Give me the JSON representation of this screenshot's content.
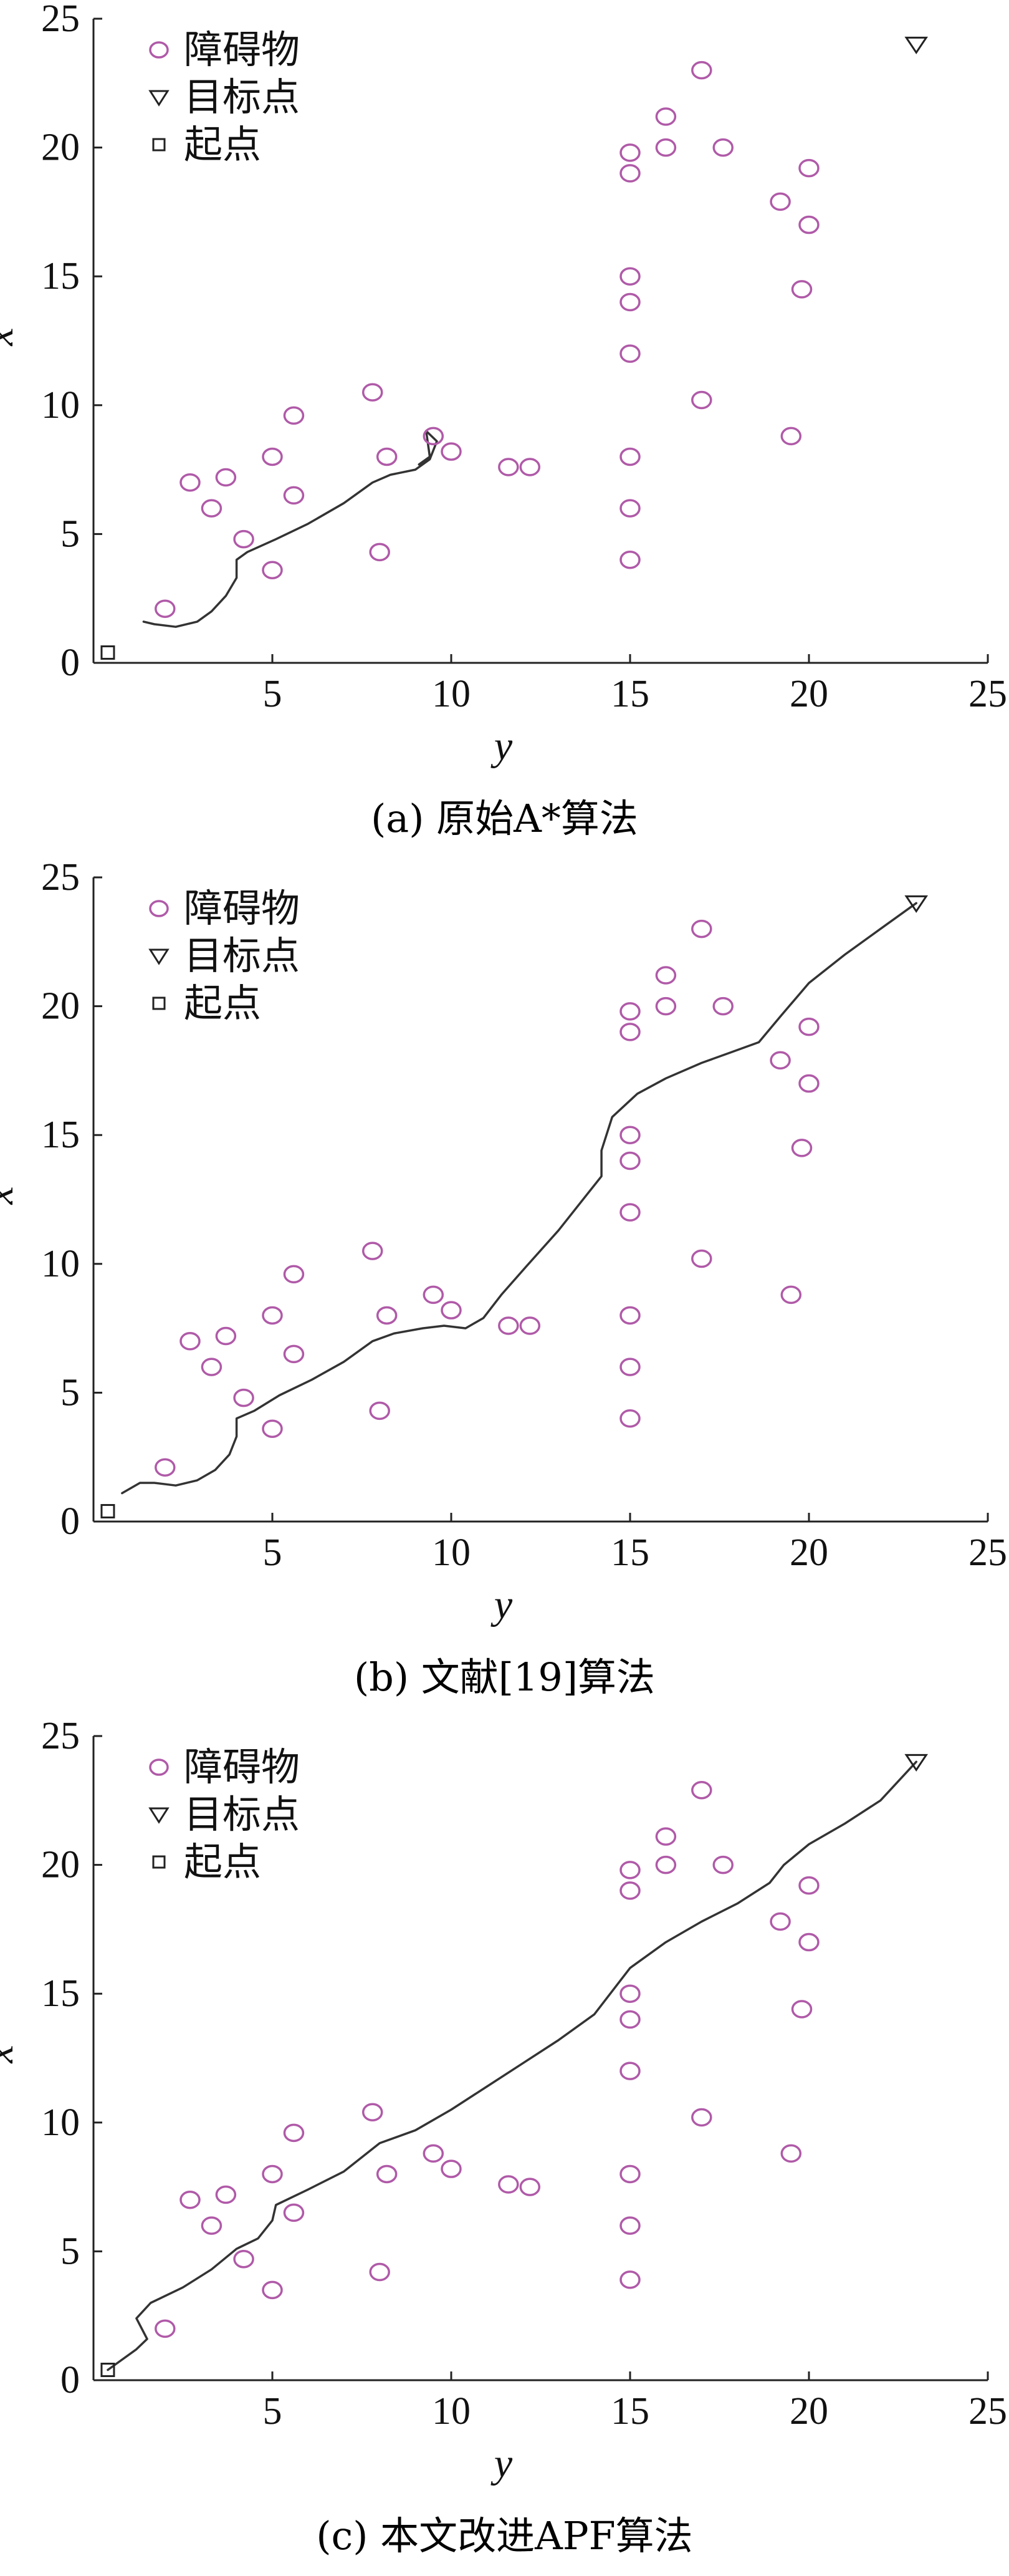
{
  "chart_data": [
    {
      "type": "scatter",
      "caption": "(a) 原始A*算法",
      "xlabel": "y",
      "ylabel": "x",
      "xlim": [
        0,
        25
      ],
      "ylim": [
        0,
        25
      ],
      "xticks": [
        "5",
        "10",
        "15",
        "20",
        "25"
      ],
      "yticks": [
        "0",
        "5",
        "10",
        "15",
        "20",
        "25"
      ],
      "legend": {
        "position": "top-left",
        "entries": [
          "障碍物",
          "目标点",
          "起点"
        ]
      },
      "colors": {
        "obstacle": "#b05aa8",
        "path": "#333333",
        "axis": "#222222"
      },
      "series": [
        {
          "name": "障碍物",
          "marker": "circle",
          "points": [
            [
              2,
              2.1
            ],
            [
              2.7,
              7
            ],
            [
              3.3,
              6
            ],
            [
              3.7,
              7.2
            ],
            [
              4.2,
              4.8
            ],
            [
              5,
              3.6
            ],
            [
              5,
              8
            ],
            [
              5.6,
              6.5
            ],
            [
              5.6,
              9.6
            ],
            [
              7.8,
              10.5
            ],
            [
              8,
              4.3
            ],
            [
              8.2,
              8
            ],
            [
              9.5,
              8.8
            ],
            [
              10,
              8.2
            ],
            [
              11.6,
              7.6
            ],
            [
              12.2,
              7.6
            ],
            [
              15,
              4
            ],
            [
              15,
              6
            ],
            [
              15,
              8
            ],
            [
              15,
              12
            ],
            [
              15,
              14
            ],
            [
              15,
              15
            ],
            [
              15,
              19
            ],
            [
              15,
              19.8
            ],
            [
              16,
              20
            ],
            [
              16,
              21.2
            ],
            [
              17,
              10.2
            ],
            [
              17,
              23
            ],
            [
              17.6,
              20
            ],
            [
              19.2,
              17.9
            ],
            [
              19.5,
              8.8
            ],
            [
              19.8,
              14.5
            ],
            [
              20,
              17
            ],
            [
              20,
              19.2
            ]
          ]
        },
        {
          "name": "目标点",
          "marker": "triangle",
          "points": [
            [
              23,
              24
            ]
          ]
        },
        {
          "name": "起点",
          "marker": "square",
          "points": [
            [
              0.4,
              0.4
            ]
          ]
        },
        {
          "name": "path",
          "marker": "line",
          "points": [
            [
              1.4,
              1.6
            ],
            [
              1.7,
              1.5
            ],
            [
              2.3,
              1.4
            ],
            [
              2.9,
              1.6
            ],
            [
              3.3,
              2
            ],
            [
              3.7,
              2.6
            ],
            [
              4,
              3.3
            ],
            [
              4,
              4
            ],
            [
              4.3,
              4.3
            ],
            [
              5.1,
              4.8
            ],
            [
              6,
              5.4
            ],
            [
              7,
              6.2
            ],
            [
              7.8,
              7
            ],
            [
              8.3,
              7.3
            ],
            [
              9,
              7.5
            ],
            [
              9.4,
              7.9
            ],
            [
              9.6,
              8.6
            ],
            [
              9.3,
              9
            ],
            [
              9.4,
              8
            ],
            [
              9.1,
              7.7
            ]
          ]
        }
      ]
    },
    {
      "type": "scatter",
      "caption": "(b) 文献[19]算法",
      "xlabel": "y",
      "ylabel": "x",
      "xlim": [
        0,
        25
      ],
      "ylim": [
        0,
        25
      ],
      "xticks": [
        "5",
        "10",
        "15",
        "20",
        "25"
      ],
      "yticks": [
        "0",
        "5",
        "10",
        "15",
        "20",
        "25"
      ],
      "legend": {
        "position": "top-left",
        "entries": [
          "障碍物",
          "目标点",
          "起点"
        ]
      },
      "colors": {
        "obstacle": "#b05aa8",
        "path": "#333333",
        "axis": "#222222"
      },
      "series": [
        {
          "name": "障碍物",
          "marker": "circle",
          "points": [
            [
              2,
              2.1
            ],
            [
              2.7,
              7
            ],
            [
              3.3,
              6
            ],
            [
              3.7,
              7.2
            ],
            [
              4.2,
              4.8
            ],
            [
              5,
              3.6
            ],
            [
              5,
              8
            ],
            [
              5.6,
              6.5
            ],
            [
              5.6,
              9.6
            ],
            [
              7.8,
              10.5
            ],
            [
              8,
              4.3
            ],
            [
              8.2,
              8
            ],
            [
              9.5,
              8.8
            ],
            [
              10,
              8.2
            ],
            [
              11.6,
              7.6
            ],
            [
              12.2,
              7.6
            ],
            [
              15,
              4
            ],
            [
              15,
              6
            ],
            [
              15,
              8
            ],
            [
              15,
              12
            ],
            [
              15,
              14
            ],
            [
              15,
              15
            ],
            [
              15,
              19
            ],
            [
              15,
              19.8
            ],
            [
              16,
              20
            ],
            [
              16,
              21.2
            ],
            [
              17,
              10.2
            ],
            [
              17,
              23
            ],
            [
              17.6,
              20
            ],
            [
              19.2,
              17.9
            ],
            [
              19.5,
              8.8
            ],
            [
              19.8,
              14.5
            ],
            [
              20,
              17
            ],
            [
              20,
              19.2
            ]
          ]
        },
        {
          "name": "目标点",
          "marker": "triangle",
          "points": [
            [
              23,
              24
            ]
          ]
        },
        {
          "name": "起点",
          "marker": "square",
          "points": [
            [
              0.4,
              0.4
            ]
          ]
        },
        {
          "name": "path",
          "marker": "line",
          "points": [
            [
              0.8,
              1.1
            ],
            [
              1.3,
              1.5
            ],
            [
              1.7,
              1.5
            ],
            [
              2.3,
              1.4
            ],
            [
              2.9,
              1.6
            ],
            [
              3.4,
              2
            ],
            [
              3.8,
              2.6
            ],
            [
              4,
              3.3
            ],
            [
              4,
              4
            ],
            [
              4.5,
              4.3
            ],
            [
              5.2,
              4.9
            ],
            [
              6.1,
              5.5
            ],
            [
              7,
              6.2
            ],
            [
              7.8,
              7
            ],
            [
              8.4,
              7.3
            ],
            [
              9.2,
              7.5
            ],
            [
              9.8,
              7.6
            ],
            [
              10.4,
              7.5
            ],
            [
              10.9,
              7.9
            ],
            [
              11.4,
              8.8
            ],
            [
              12.1,
              9.9
            ],
            [
              13,
              11.3
            ],
            [
              13.8,
              12.7
            ],
            [
              14.2,
              13.4
            ],
            [
              14.2,
              14.4
            ],
            [
              14.5,
              15.7
            ],
            [
              15.2,
              16.6
            ],
            [
              16,
              17.2
            ],
            [
              17,
              17.8
            ],
            [
              17.8,
              18.2
            ],
            [
              18.6,
              18.6
            ],
            [
              19.2,
              19.6
            ],
            [
              20,
              20.9
            ],
            [
              21,
              22
            ],
            [
              22,
              23
            ],
            [
              23,
              24
            ]
          ]
        }
      ]
    },
    {
      "type": "scatter",
      "caption": "(c) 本文改进APF算法",
      "xlabel": "y",
      "ylabel": "x",
      "xlim": [
        0,
        25
      ],
      "ylim": [
        0,
        25
      ],
      "xticks": [
        "5",
        "10",
        "15",
        "20",
        "25"
      ],
      "yticks": [
        "0",
        "5",
        "10",
        "15",
        "20",
        "25"
      ],
      "legend": {
        "position": "top-left",
        "entries": [
          "障碍物",
          "目标点",
          "起点"
        ]
      },
      "colors": {
        "obstacle": "#b05aa8",
        "path": "#333333",
        "axis": "#222222"
      },
      "series": [
        {
          "name": "障碍物",
          "marker": "circle",
          "points": [
            [
              2,
              2
            ],
            [
              2.7,
              7
            ],
            [
              3.3,
              6
            ],
            [
              3.7,
              7.2
            ],
            [
              4.2,
              4.7
            ],
            [
              5,
              3.5
            ],
            [
              5,
              8
            ],
            [
              5.6,
              6.5
            ],
            [
              5.6,
              9.6
            ],
            [
              7.8,
              10.4
            ],
            [
              8,
              4.2
            ],
            [
              8.2,
              8
            ],
            [
              9.5,
              8.8
            ],
            [
              10,
              8.2
            ],
            [
              11.6,
              7.6
            ],
            [
              12.2,
              7.5
            ],
            [
              15,
              3.9
            ],
            [
              15,
              6
            ],
            [
              15,
              8
            ],
            [
              15,
              12
            ],
            [
              15,
              14
            ],
            [
              15,
              15
            ],
            [
              15,
              19
            ],
            [
              15,
              19.8
            ],
            [
              16,
              20
            ],
            [
              16,
              21.1
            ],
            [
              17,
              10.2
            ],
            [
              17,
              22.9
            ],
            [
              17.6,
              20
            ],
            [
              19.2,
              17.8
            ],
            [
              19.5,
              8.8
            ],
            [
              19.8,
              14.4
            ],
            [
              20,
              17
            ],
            [
              20,
              19.2
            ]
          ]
        },
        {
          "name": "目标点",
          "marker": "triangle",
          "points": [
            [
              23,
              24
            ]
          ]
        },
        {
          "name": "起点",
          "marker": "square",
          "points": [
            [
              0.4,
              0.4
            ]
          ]
        },
        {
          "name": "path",
          "marker": "line",
          "points": [
            [
              0.4,
              0.4
            ],
            [
              1.2,
              1.2
            ],
            [
              1.5,
              1.6
            ],
            [
              1.2,
              2.4
            ],
            [
              1.6,
              3
            ],
            [
              2.5,
              3.6
            ],
            [
              3.3,
              4.3
            ],
            [
              4,
              5.1
            ],
            [
              4.6,
              5.5
            ],
            [
              5,
              6.2
            ],
            [
              5.1,
              6.8
            ],
            [
              6,
              7.4
            ],
            [
              7,
              8.1
            ],
            [
              8,
              9.2
            ],
            [
              9,
              9.7
            ],
            [
              10,
              10.5
            ],
            [
              11,
              11.4
            ],
            [
              12,
              12.3
            ],
            [
              13,
              13.2
            ],
            [
              14,
              14.2
            ],
            [
              15,
              16
            ],
            [
              16,
              17
            ],
            [
              17,
              17.8
            ],
            [
              18,
              18.5
            ],
            [
              18.9,
              19.3
            ],
            [
              19.3,
              20
            ],
            [
              20,
              20.8
            ],
            [
              21,
              21.6
            ],
            [
              22,
              22.5
            ],
            [
              23,
              24
            ]
          ]
        }
      ]
    }
  ]
}
